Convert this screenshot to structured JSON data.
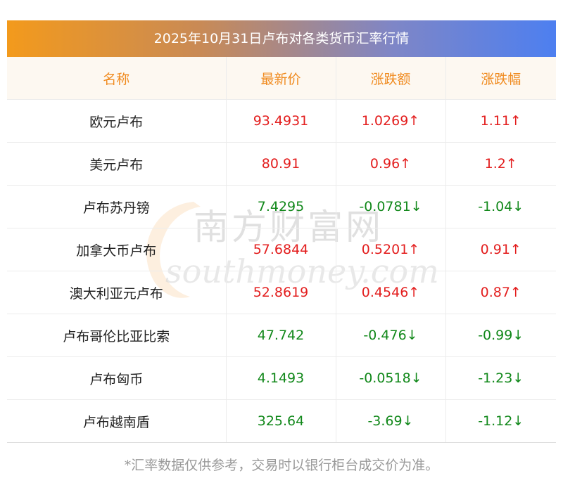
{
  "title": "2025年10月31日卢布对各类货币汇率行情",
  "headers": [
    "名称",
    "最新价",
    "涨跌额",
    "涨跌幅"
  ],
  "rows": [
    {
      "name": "欧元卢布",
      "price": "93.4931",
      "change": "1.0269↑",
      "pct": "1.11↑",
      "dir": "up"
    },
    {
      "name": "美元卢布",
      "price": "80.91",
      "change": "0.96↑",
      "pct": "1.2↑",
      "dir": "up"
    },
    {
      "name": "卢布苏丹镑",
      "price": "7.4295",
      "change": "-0.0781↓",
      "pct": "-1.04↓",
      "dir": "down"
    },
    {
      "name": "加拿大币卢布",
      "price": "57.6844",
      "change": "0.5201↑",
      "pct": "0.91↑",
      "dir": "up"
    },
    {
      "name": "澳大利亚元卢布",
      "price": "52.8619",
      "change": "0.4546↑",
      "pct": "0.87↑",
      "dir": "up"
    },
    {
      "name": "卢布哥伦比亚比索",
      "price": "47.742",
      "change": "-0.476↓",
      "pct": "-0.99↓",
      "dir": "down"
    },
    {
      "name": "卢布匈币",
      "price": "4.1493",
      "change": "-0.0518↓",
      "pct": "-1.23↓",
      "dir": "down"
    },
    {
      "name": "卢布越南盾",
      "price": "325.64",
      "change": "-3.69↓",
      "pct": "-1.12↓",
      "dir": "down"
    }
  ],
  "watermark": {
    "brand": "南方财富网",
    "site": "southmoney.com"
  },
  "note": "*汇率数据仅供参考，交易时以银行柜台成交价为准。",
  "colors": {
    "up": "#e31e1e",
    "down": "#11881a",
    "header_text": "#f08a1e",
    "title_gradient_start": "#f39a1c",
    "title_gradient_end": "#4d7ff0"
  }
}
